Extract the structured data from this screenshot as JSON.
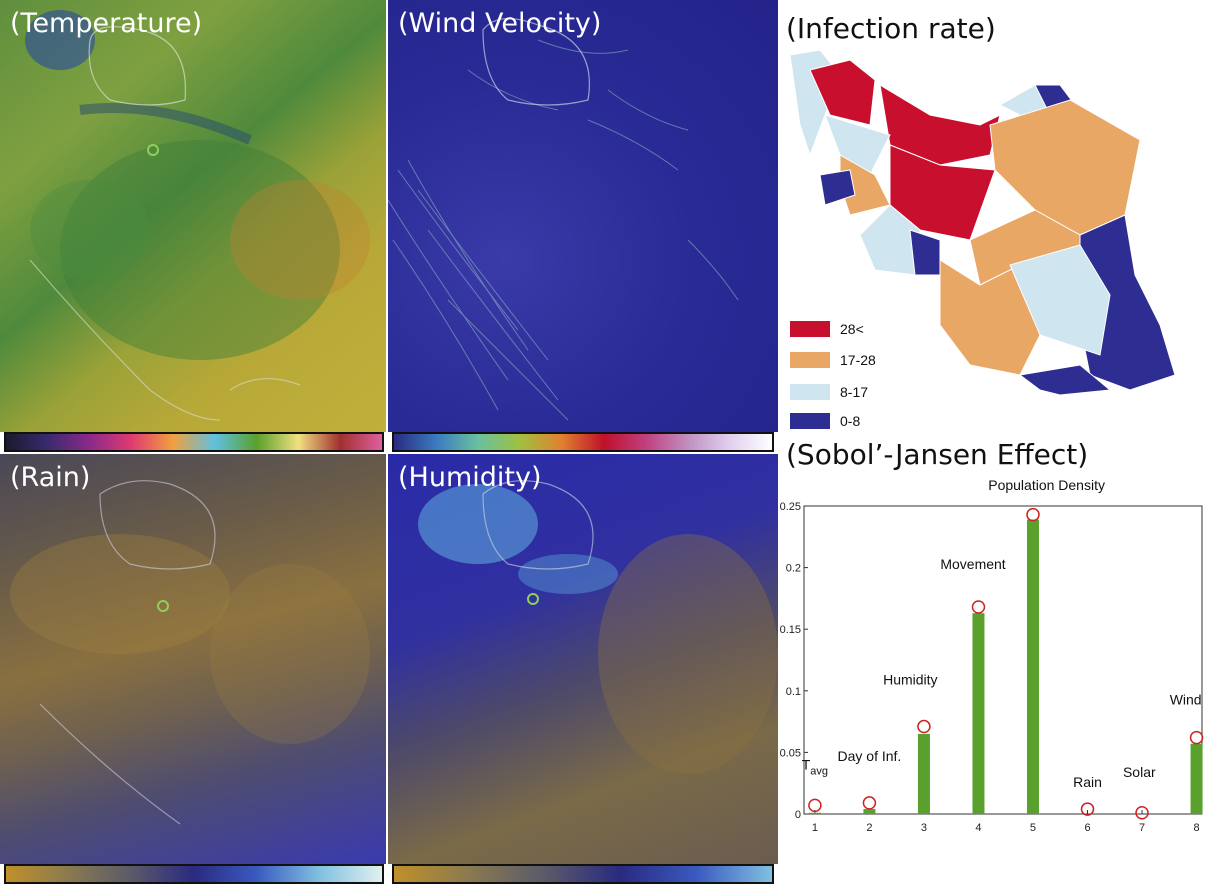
{
  "panels": {
    "temperature": {
      "title": "(Temperature)"
    },
    "wind": {
      "title": "(Wind Velocity)"
    },
    "rain": {
      "title": "(Rain)"
    },
    "humidity": {
      "title": "(Humidity)"
    }
  },
  "infection_map": {
    "title": "(Infection rate)",
    "legend": [
      {
        "label": "28<",
        "color": "#c8102e"
      },
      {
        "label": "17-28",
        "color": "#e8a765"
      },
      {
        "label": "8-17",
        "color": "#cfe5ef"
      },
      {
        "label": "0-8",
        "color": "#2e2e92"
      }
    ]
  },
  "sobol": {
    "title": "(Sobol’-Jansen Effect)"
  },
  "chart_data": {
    "type": "bar",
    "title": "(Sobol’-Jansen Effect)",
    "x": [
      1,
      2,
      3,
      4,
      5,
      6,
      7,
      8
    ],
    "xticks": [
      "1",
      "2",
      "3",
      "4",
      "5",
      "6",
      "7",
      "8"
    ],
    "yticks": [
      "0",
      "0.05",
      "0.1",
      "0.15",
      "0.2",
      "0.25"
    ],
    "ylim": [
      0,
      0.25
    ],
    "xlim": [
      1,
      8
    ],
    "series": [
      {
        "values": [
          0.001,
          0.004,
          0.065,
          0.163,
          0.239,
          0.0,
          0.0,
          0.057
        ],
        "color": "#5aa02c",
        "style": "bar"
      },
      {
        "values": [
          0.007,
          0.009,
          0.071,
          0.168,
          0.243,
          0.004,
          0.001,
          0.062
        ],
        "color": "#cc2222",
        "style": "circle"
      }
    ],
    "annotations": [
      {
        "text": "T",
        "sub": "avg",
        "x": 1,
        "y": 0.036
      },
      {
        "text": "Day of Inf.",
        "x": 2,
        "y": 0.043
      },
      {
        "text": "Humidity",
        "x": 2.75,
        "y": 0.105
      },
      {
        "text": "Movement",
        "x": 3.9,
        "y": 0.199
      },
      {
        "text": "Population Density",
        "x": 5.25,
        "y": 0.263
      },
      {
        "text": "Rain",
        "x": 6.0,
        "y": 0.022
      },
      {
        "text": "Solar",
        "x": 6.95,
        "y": 0.03
      },
      {
        "text": "Wind",
        "x": 7.8,
        "y": 0.089
      }
    ],
    "grid": false
  }
}
